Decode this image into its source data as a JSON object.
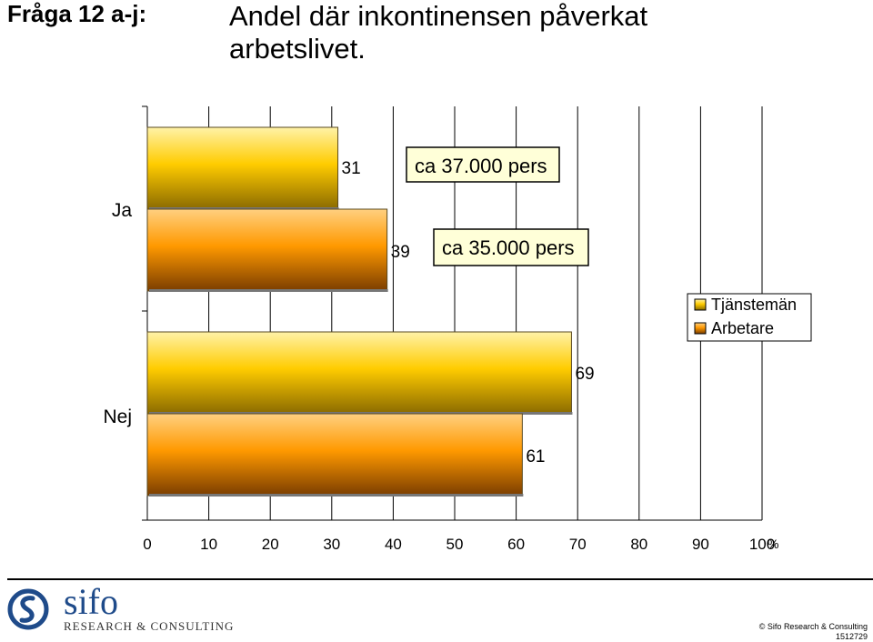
{
  "header": {
    "question": "Fråga 12 a-j:",
    "title_line1": "Andel där inkontinensen påverkat",
    "title_line2": "arbetslivet."
  },
  "chart_data": {
    "type": "bar",
    "orientation": "horizontal",
    "categories": [
      "Ja",
      "Nej"
    ],
    "series": [
      {
        "name": "Tjänstemän",
        "values": [
          31,
          69
        ],
        "color": "#ffcc00"
      },
      {
        "name": "Arbetare",
        "values": [
          39,
          61
        ],
        "color": "#ff9900"
      }
    ],
    "xlim": [
      0,
      100
    ],
    "xticks": [
      "0",
      "10",
      "20",
      "30",
      "40",
      "50",
      "60",
      "70",
      "80",
      "90",
      "100"
    ],
    "x_unit": "%",
    "grid": true,
    "legend": "right",
    "annotations": [
      "ca 37.000 pers",
      "ca 35.000 pers"
    ]
  },
  "footer": {
    "brand": "sifo",
    "brand_sub": "RESEARCH & CONSULTING",
    "copyright": "© Sifo Research & Consulting",
    "code": "1512729"
  }
}
